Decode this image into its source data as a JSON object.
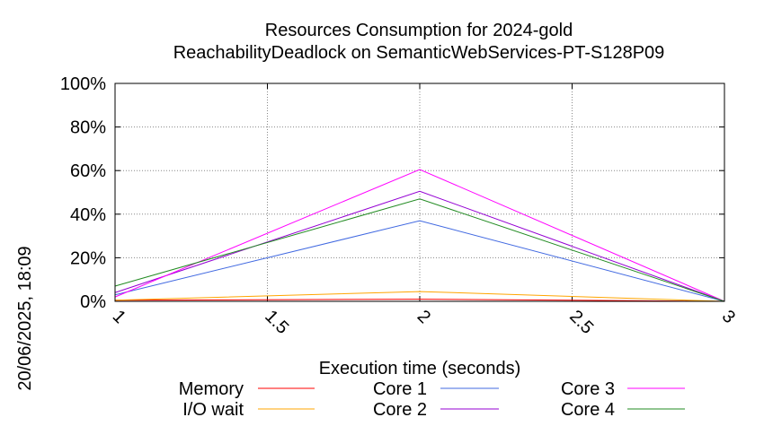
{
  "chart_data": {
    "type": "line",
    "title_line1": "Resources Consumption for 2024-gold",
    "title_line2": "ReachabilityDeadlock on SemanticWebServices-PT-S128P09",
    "xlabel": "Execution time (seconds)",
    "ylabel": "",
    "side_label": "20/06/2025, 18:09",
    "xlim": [
      1,
      3
    ],
    "ylim": [
      0,
      100
    ],
    "x_ticks": [
      "1",
      "1.5",
      "2",
      "2.5",
      "3"
    ],
    "x_tick_values": [
      1,
      1.5,
      2,
      2.5,
      3
    ],
    "y_ticks": [
      "0%",
      "20%",
      "40%",
      "60%",
      "80%",
      "100%"
    ],
    "y_tick_values": [
      0,
      20,
      40,
      60,
      80,
      100
    ],
    "grid": true,
    "legend_position": "bottom",
    "x": [
      1,
      2,
      3
    ],
    "series": [
      {
        "name": "Memory",
        "color": "#ff0000",
        "values": [
          0.5,
          1.0,
          0
        ]
      },
      {
        "name": "I/O wait",
        "color": "#ffa500",
        "values": [
          0.5,
          4.5,
          0
        ]
      },
      {
        "name": "Core 1",
        "color": "#4169e1",
        "values": [
          3,
          37,
          0
        ]
      },
      {
        "name": "Core 2",
        "color": "#9400d3",
        "values": [
          4,
          50.5,
          0
        ]
      },
      {
        "name": "Core 3",
        "color": "#ff00ff",
        "values": [
          2,
          60.5,
          0
        ]
      },
      {
        "name": "Core 4",
        "color": "#228b22",
        "values": [
          7,
          47,
          0
        ]
      }
    ]
  }
}
